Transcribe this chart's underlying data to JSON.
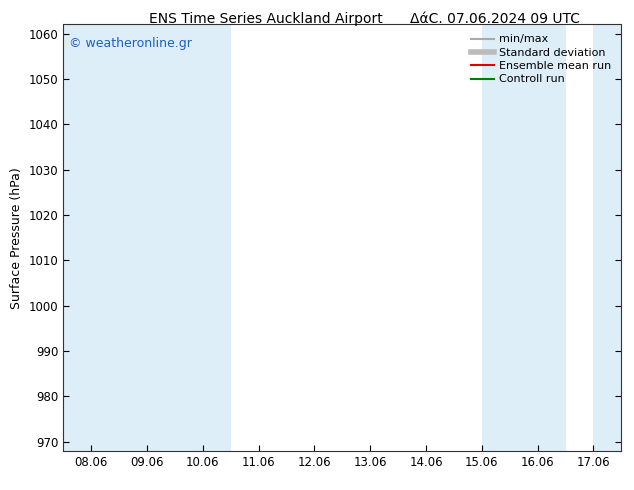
{
  "title_left": "ENS Time Series Auckland Airport",
  "title_right": "ΔάϹ. 07.06.2024 09 UTC",
  "ylabel": "Surface Pressure (hPa)",
  "ylim": [
    968,
    1062
  ],
  "yticks": [
    970,
    980,
    990,
    1000,
    1010,
    1020,
    1030,
    1040,
    1050,
    1060
  ],
  "xtick_labels": [
    "08.06",
    "09.06",
    "10.06",
    "11.06",
    "12.06",
    "13.06",
    "14.06",
    "15.06",
    "16.06",
    "17.06"
  ],
  "xtick_positions": [
    0,
    1,
    2,
    3,
    4,
    5,
    6,
    7,
    8,
    9
  ],
  "xlim": [
    -0.5,
    9.5
  ],
  "shaded_bands": [
    {
      "x_start": -0.5,
      "x_end": 0.5,
      "color": "#ddeef8"
    },
    {
      "x_start": 0.5,
      "x_end": 2.5,
      "color": "#ddeef8"
    },
    {
      "x_start": 7.5,
      "x_end": 8.5,
      "color": "#ddeef8"
    },
    {
      "x_start": 9.0,
      "x_end": 9.5,
      "color": "#ddeef8"
    }
  ],
  "watermark": "© weatheronline.gr",
  "watermark_color": "#1e5fbf",
  "legend_items": [
    {
      "label": "min/max",
      "color": "#aaaaaa",
      "lw": 1.5
    },
    {
      "label": "Standard deviation",
      "color": "#bbbbbb",
      "lw": 4
    },
    {
      "label": "Ensemble mean run",
      "color": "#dd0000",
      "lw": 1.5
    },
    {
      "label": "Controll run",
      "color": "#008000",
      "lw": 1.5
    }
  ],
  "bg_color": "#ffffff",
  "plot_bg_color": "#ffffff",
  "title_fontsize": 10,
  "axis_fontsize": 9,
  "tick_fontsize": 8.5,
  "legend_fontsize": 8
}
